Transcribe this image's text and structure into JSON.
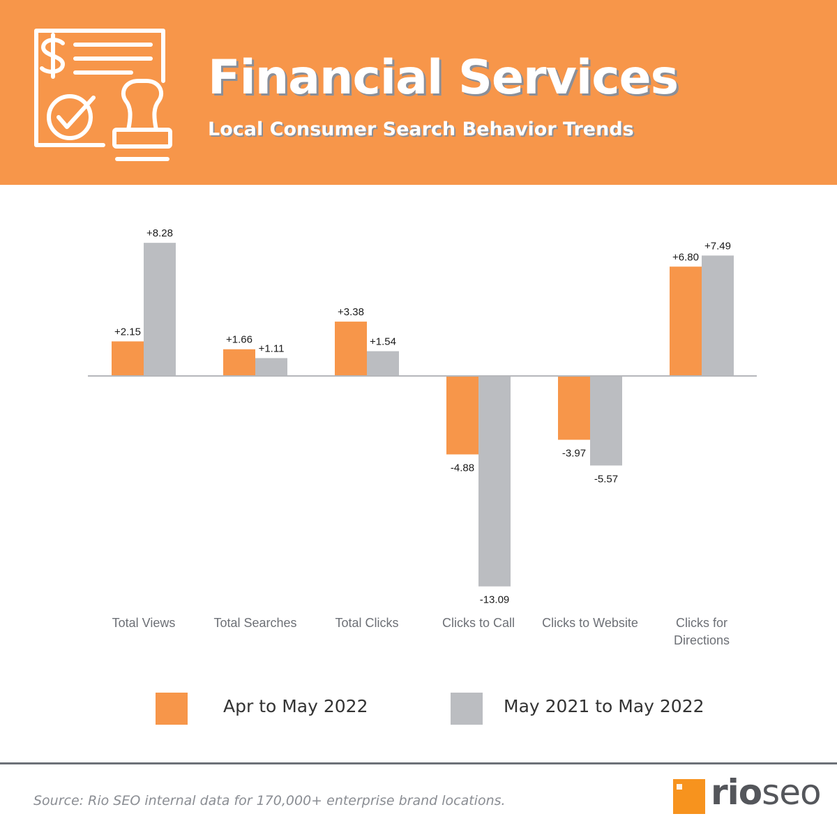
{
  "header": {
    "title": "Financial Services",
    "subtitle": "Local Consumer Search Behavior Trends",
    "icon": "financial-document-stamp-icon"
  },
  "colors": {
    "header_bg": "#F7964A",
    "series1": "#F7964A",
    "series2": "#BBBDC1",
    "axis": "#B5B7BB",
    "label_text": "#1a1a1a",
    "category_text": "#6d7076"
  },
  "chart_data": {
    "type": "bar",
    "title": "Financial Services",
    "subtitle": "Local Consumer Search Behavior Trends",
    "categories": [
      "Total Views",
      "Total Searches",
      "Total Clicks",
      "Clicks to Call",
      "Clicks to Website",
      "Clicks for Directions"
    ],
    "series": [
      {
        "name": "Apr to May 2022",
        "values": [
          2.15,
          1.66,
          3.38,
          -4.88,
          -3.97,
          6.8
        ],
        "labels": [
          "+2.15",
          "+1.66",
          "+3.38",
          "-4.88",
          "-3.97",
          "+6.80"
        ]
      },
      {
        "name": "May 2021 to May 2022",
        "values": [
          8.28,
          1.11,
          1.54,
          -13.09,
          -5.57,
          7.49
        ],
        "labels": [
          "+8.28",
          "+1.11",
          "+1.54",
          "-13.09",
          "-5.57",
          "+7.49"
        ]
      }
    ],
    "ylim": [
      -13.09,
      8.28
    ],
    "grid": false,
    "legend": "bottom"
  },
  "legend": {
    "items": [
      {
        "label": "Apr to May 2022"
      },
      {
        "label": "May 2021 to May 2022"
      }
    ]
  },
  "footer": {
    "source": "Source: Rio SEO internal data for 170,000+ enterprise brand locations.",
    "logo_text_1": "rio",
    "logo_text_2": "seo"
  }
}
